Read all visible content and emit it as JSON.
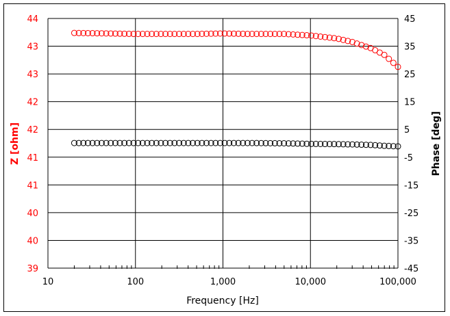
{
  "chart_data": {
    "type": "scatter",
    "title": "",
    "xlabel": "Frequency [Hz]",
    "ylabel": "Z [ohm]",
    "y2label": "Phase [deg]",
    "xscale": "log",
    "xlim": [
      10,
      100000
    ],
    "ylim": [
      39,
      44
    ],
    "y2lim": [
      -45,
      45
    ],
    "grid": true,
    "legend": "none",
    "x_ticks": [
      "10",
      "100",
      "1,000",
      "10,000",
      "100,000"
    ],
    "y_ticks": [
      "44",
      "43",
      "43",
      "42",
      "42",
      "41",
      "41",
      "40",
      "40",
      "39"
    ],
    "y2_ticks": [
      "45",
      "35",
      "25",
      "15",
      "5",
      "-5",
      "-15",
      "-25",
      "-35",
      "-45"
    ],
    "colors": {
      "z": "#ff0000",
      "phase": "#000000",
      "z_axis": "#ff0000"
    },
    "series": [
      {
        "name": "Z",
        "axis": "left",
        "marker": "open-circle",
        "color": "#ff0000",
        "x": [
          20,
          50,
          100,
          200,
          500,
          1000,
          2000,
          5000,
          10000,
          20000,
          30000,
          50000,
          70000,
          100000
        ],
        "values": [
          43.71,
          43.7,
          43.69,
          43.69,
          43.69,
          43.7,
          43.69,
          43.69,
          43.66,
          43.6,
          43.53,
          43.4,
          43.27,
          43.03
        ]
      },
      {
        "name": "Phase",
        "axis": "right",
        "marker": "open-circle",
        "color": "#000000",
        "x": [
          20,
          50,
          100,
          200,
          500,
          1000,
          2000,
          5000,
          10000,
          20000,
          30000,
          50000,
          70000,
          100000
        ],
        "values": [
          0.1,
          0.1,
          0.1,
          0.1,
          0.1,
          0.1,
          0.1,
          0.0,
          -0.2,
          -0.3,
          -0.4,
          -0.6,
          -0.9,
          -1.1
        ]
      }
    ]
  }
}
